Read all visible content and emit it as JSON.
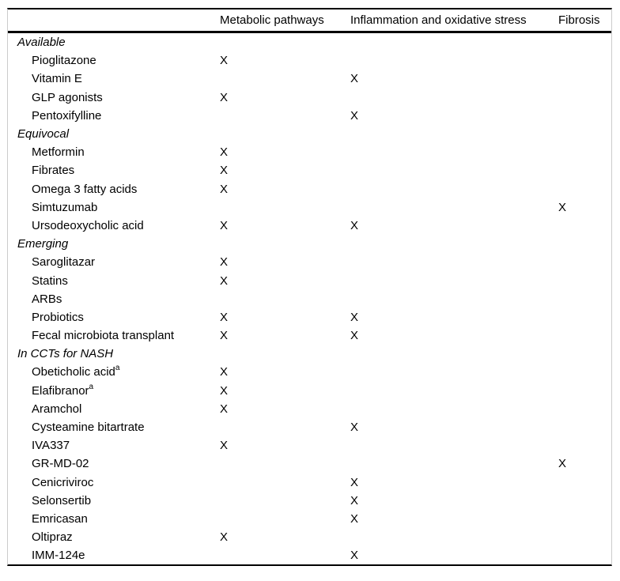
{
  "table": {
    "columns": [
      "",
      "Metabolic pathways",
      "Inflammation and oxidative stress",
      "Fibrosis"
    ],
    "mark": "X",
    "groups": [
      {
        "label": "Available",
        "rows": [
          {
            "name": "Pioglitazone",
            "sup": "",
            "marks": [
              true,
              false,
              false
            ]
          },
          {
            "name": "Vitamin E",
            "sup": "",
            "marks": [
              false,
              true,
              false
            ]
          },
          {
            "name": "GLP agonists",
            "sup": "",
            "marks": [
              true,
              false,
              false
            ]
          },
          {
            "name": "Pentoxifylline",
            "sup": "",
            "marks": [
              false,
              true,
              false
            ]
          }
        ]
      },
      {
        "label": "Equivocal",
        "rows": [
          {
            "name": "Metformin",
            "sup": "",
            "marks": [
              true,
              false,
              false
            ]
          },
          {
            "name": "Fibrates",
            "sup": "",
            "marks": [
              true,
              false,
              false
            ]
          },
          {
            "name": "Omega 3 fatty acids",
            "sup": "",
            "marks": [
              true,
              false,
              false
            ]
          },
          {
            "name": "Simtuzumab",
            "sup": "",
            "marks": [
              false,
              false,
              true
            ]
          },
          {
            "name": "Ursodeoxycholic acid",
            "sup": "",
            "marks": [
              true,
              true,
              false
            ]
          }
        ]
      },
      {
        "label": "Emerging",
        "rows": [
          {
            "name": "Saroglitazar",
            "sup": "",
            "marks": [
              true,
              false,
              false
            ]
          },
          {
            "name": "Statins",
            "sup": "",
            "marks": [
              true,
              false,
              false
            ]
          },
          {
            "name": "ARBs",
            "sup": "",
            "marks": [
              false,
              false,
              false
            ]
          },
          {
            "name": "Probiotics",
            "sup": "",
            "marks": [
              true,
              true,
              false
            ]
          },
          {
            "name": "Fecal microbiota transplant",
            "sup": "",
            "marks": [
              true,
              true,
              false
            ]
          }
        ]
      },
      {
        "label": "In CCTs for NASH",
        "rows": [
          {
            "name": "Obeticholic acid",
            "sup": "a",
            "marks": [
              true,
              false,
              false
            ]
          },
          {
            "name": "Elafibranor",
            "sup": "a",
            "marks": [
              true,
              false,
              false
            ]
          },
          {
            "name": "Aramchol",
            "sup": "",
            "marks": [
              true,
              false,
              false
            ]
          },
          {
            "name": "Cysteamine bitartrate",
            "sup": "",
            "marks": [
              false,
              true,
              false
            ]
          },
          {
            "name": "IVA337",
            "sup": "",
            "marks": [
              true,
              false,
              false
            ]
          },
          {
            "name": "GR-MD-02",
            "sup": "",
            "marks": [
              false,
              false,
              true
            ]
          },
          {
            "name": "Cenicriviroc",
            "sup": "",
            "marks": [
              false,
              true,
              false
            ]
          },
          {
            "name": "Selonsertib",
            "sup": "",
            "marks": [
              false,
              true,
              false
            ]
          },
          {
            "name": "Emricasan",
            "sup": "",
            "marks": [
              false,
              true,
              false
            ]
          },
          {
            "name": "Oltipraz",
            "sup": "",
            "marks": [
              true,
              false,
              false
            ]
          },
          {
            "name": "IMM-124e",
            "sup": "",
            "marks": [
              false,
              true,
              false
            ]
          }
        ]
      }
    ]
  }
}
